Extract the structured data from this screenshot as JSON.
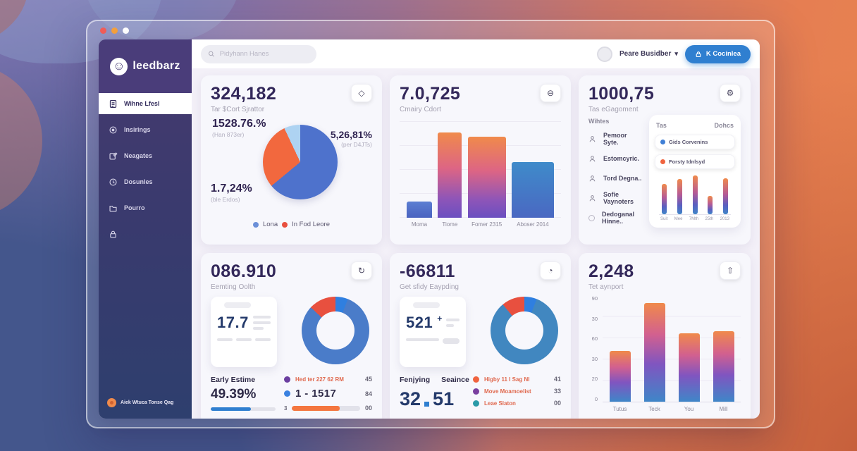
{
  "window": {
    "traffic_lights": [
      "#f25d58",
      "#f5a13d",
      "#ffffff"
    ]
  },
  "sidebar": {
    "logo": {
      "text": "leedbarz",
      "icon": "smiley-icon",
      "glyph": "☺"
    },
    "items": [
      {
        "label": "Wihne Lfesl",
        "icon": "document-icon",
        "active": true
      },
      {
        "label": "Insirings",
        "icon": "target-icon",
        "active": false
      },
      {
        "label": "Neagates",
        "icon": "note-icon",
        "active": false
      },
      {
        "label": "Dosunles",
        "icon": "clock-icon",
        "active": false
      },
      {
        "label": "Pourro",
        "icon": "folder-icon",
        "active": false
      },
      {
        "label": "",
        "icon": "lock-icon",
        "active": false
      }
    ],
    "footer": {
      "label": "Aiek Wtuca Tonse Qag",
      "dot_color": "#f08a4b"
    }
  },
  "header": {
    "search_placeholder": "Pidyhann Hanes",
    "user": {
      "name": "Peare Busidber"
    },
    "action_button": {
      "label": "K Cocinlea",
      "color": "#2f7fd0"
    }
  },
  "cards": [
    {
      "value": "324,182",
      "subtitle": "Tar $Cort Sjrattor",
      "action_icon": "◇",
      "stats": [
        {
          "value": "1528.76.%",
          "sub": "(Han 873er)"
        },
        {
          "value": "5,26,81%",
          "sub": "(per D4JTs)"
        },
        {
          "value": "1.7,24%",
          "sub": "(ble Erdos)"
        }
      ],
      "pie": {
        "slices": [
          {
            "name": "primary",
            "value": 64,
            "color": "#4e72cc"
          },
          {
            "name": "secondary",
            "value": 29,
            "color": "#f2683e"
          },
          {
            "name": "tertiary",
            "value": 7,
            "color": "#aed3f2"
          }
        ]
      },
      "legend": [
        {
          "label": "Lona",
          "color": "#6b8fd8"
        },
        {
          "label": "In Fod Leore",
          "color": "#e8503f"
        }
      ]
    },
    {
      "value": "7.0,725",
      "subtitle": "Cmairy Cdort",
      "action_icon": "⊖",
      "chart": {
        "type": "bar",
        "categories": [
          "Moma",
          "Tiome",
          "Fomer 2315",
          "Aboser 2014"
        ],
        "values": [
          17,
          88,
          83,
          57
        ]
      }
    },
    {
      "value": "1000,75",
      "subtitle": "Tas eGagoment",
      "action_icon": "⚙",
      "list_header": "Wihtes",
      "items": [
        {
          "label": "Pemoor Syte.",
          "icon": "user-icon"
        },
        {
          "label": "Estomcyric.",
          "icon": "user-icon"
        },
        {
          "label": "Tord Degna..",
          "icon": "user-icon"
        },
        {
          "label": "Sofie Vaynoters",
          "icon": "user-icon"
        },
        {
          "label": "Dedoganal Hinne..",
          "icon": "radio-icon"
        }
      ],
      "panel": {
        "col1": "Tas",
        "col2": "Dohcs",
        "legend": [
          {
            "label": "Gids Corvenins",
            "color": "#3f7fd6"
          },
          {
            "label": "Forsty Idnlsyd",
            "color": "#f0633f"
          }
        ],
        "mini_chart": {
          "type": "bar",
          "categories": [
            "Suit",
            "Mee",
            "7Mth",
            "25th",
            "2013"
          ],
          "values": [
            75,
            88,
            97,
            45,
            90
          ]
        }
      }
    },
    {
      "value": "086.910",
      "subtitle": "Eemting Oolth",
      "action_icon": "↻",
      "mini_card": {
        "value": "17.7"
      },
      "donut": {
        "slices": [
          {
            "name": "highlight",
            "value": 6,
            "color": "#2f7fe0"
          },
          {
            "name": "primary",
            "value": 81,
            "color": "#4a7cc9"
          },
          {
            "name": "alert",
            "value": 13,
            "color": "#e8503f"
          }
        ]
      },
      "bottom_left": {
        "label": "Early Estime",
        "value": "49.39%",
        "progress": 62,
        "color": "#2f7fd0"
      },
      "rows": [
        {
          "dot": "#6b3fa0",
          "label": "Hed ter 227 62 RM",
          "value": "45"
        },
        {
          "dot": "#3b82e0",
          "label": "1 - 1517",
          "value": "84"
        },
        {
          "prefix": "3",
          "progress": 70,
          "color": "#f4763f",
          "value": "00"
        }
      ]
    },
    {
      "value": "-66811",
      "subtitle": "Get sfidy Eaypding",
      "action_icon": "◔",
      "mini_card": {
        "value": "521",
        "suffix": "+"
      },
      "donut": {
        "slices": [
          {
            "name": "highlight",
            "value": 6,
            "color": "#2f7fe0"
          },
          {
            "name": "primary",
            "value": 83,
            "color": "#4187c0"
          },
          {
            "name": "alert",
            "value": 11,
            "color": "#e8503f"
          }
        ]
      },
      "bottom": {
        "col1": "Fenjying",
        "col2": "Seaince",
        "big_left": "32",
        "big_right": "51"
      },
      "rows": [
        {
          "dot": "#f0633f",
          "label": "Higby 11 I Sag NI",
          "value": "41"
        },
        {
          "dot": "#7a3fa0",
          "label": "Move Moamoelist",
          "value": "33"
        },
        {
          "dot": "#2a9aa8",
          "label": "Leae Slaton",
          "value": "00"
        }
      ]
    },
    {
      "value": "2,248",
      "subtitle": "Tet aynport",
      "action_icon": "⇧",
      "chart": {
        "type": "bar",
        "categories": [
          "Tutus",
          "Teck",
          "You",
          "Mill"
        ],
        "values": [
          48,
          93,
          64,
          66
        ],
        "y_ticks": [
          "90",
          "30",
          "60",
          "30",
          "20",
          "0"
        ]
      }
    }
  ]
}
